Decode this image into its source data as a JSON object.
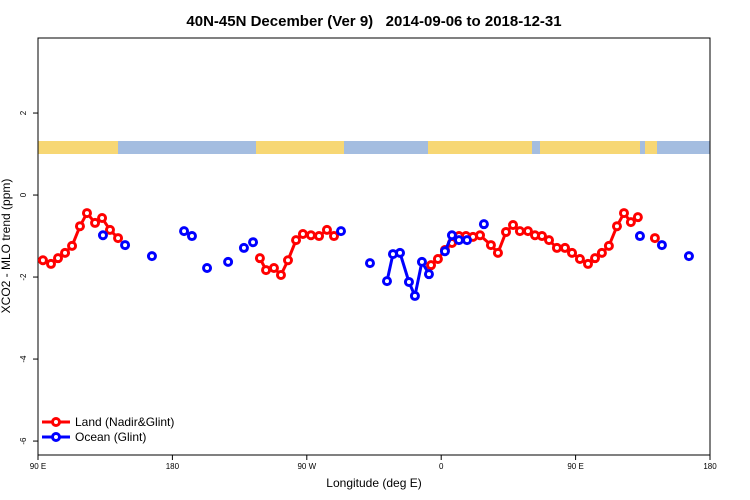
{
  "chart_data": {
    "type": "line",
    "title": "40N-45N December (Ver 9)   2014-09-06 to 2018-12-31",
    "x_label": "Longitude (deg E)",
    "y_label": "XCO2 - MLO trend (ppm)",
    "xlim": [
      90,
      540
    ],
    "xticks": [
      {
        "value": 90,
        "label": "90 E"
      },
      {
        "value": 180,
        "label": "180"
      },
      {
        "value": 270,
        "label": "90 W"
      },
      {
        "value": 360,
        "label": "0"
      },
      {
        "value": 450,
        "label": "90 E"
      },
      {
        "value": 540,
        "label": "180"
      }
    ],
    "ylim": [
      -6.34,
      3.83
    ],
    "yticks": [
      -6,
      -4,
      -2,
      0,
      2
    ],
    "legend": "bottom-left",
    "series": [
      {
        "name": "Land (Nadir&Glint)",
        "color": "#ff0000",
        "x": [
          93.3,
          98.7,
          103.4,
          108.1,
          112.8,
          118.1,
          122.8,
          128.2,
          132.9,
          138.2,
          143.6,
          null,
          238.6,
          242.7,
          248.0,
          252.7,
          257.4,
          262.8,
          267.4,
          272.8,
          278.2,
          283.5,
          288.2,
          null,
          353.2,
          357.8,
          362.5,
          367.2,
          371.9,
          376.6,
          381.3,
          386.0,
          393.3,
          398.0,
          403.4,
          408.1,
          412.7,
          418.1,
          422.8,
          427.5,
          432.2,
          437.5,
          442.9,
          447.6,
          452.9,
          458.3,
          463.0,
          467.6,
          472.3,
          477.7,
          482.4,
          487.0,
          491.7,
          null,
          503.1
        ],
        "values": [
          -1.59,
          -1.68,
          -1.54,
          -1.41,
          -1.24,
          -0.76,
          -0.44,
          -0.68,
          -0.56,
          -0.85,
          -1.05,
          null,
          -1.54,
          -1.83,
          -1.78,
          -1.95,
          -1.59,
          -1.1,
          -0.95,
          -0.98,
          -1.0,
          -0.85,
          -1.0,
          null,
          -1.71,
          -1.56,
          -1.34,
          -1.17,
          -1.0,
          -1.0,
          -1.02,
          -0.98,
          -1.22,
          -1.41,
          -0.9,
          -0.73,
          -0.88,
          -0.88,
          -0.98,
          -1.0,
          -1.1,
          -1.29,
          -1.29,
          -1.41,
          -1.56,
          -1.68,
          -1.54,
          -1.41,
          -1.24,
          -0.76,
          -0.44,
          -0.66,
          -0.54,
          null,
          -1.05
        ]
      },
      {
        "name": "Ocean (Glint)",
        "color": "#0000ff",
        "x": [
          133.5,
          null,
          148.3,
          null,
          166.3,
          null,
          187.8,
          null,
          193.1,
          null,
          203.2,
          null,
          217.3,
          null,
          227.9,
          null,
          234.0,
          null,
          292.9,
          null,
          312.3,
          null,
          323.7,
          327.7,
          332.4,
          338.4,
          342.4,
          347.1,
          351.8,
          null,
          362.5,
          367.2,
          371.9,
          377.3,
          null,
          388.6,
          null,
          493.1,
          null,
          507.8,
          null,
          525.9
        ],
        "values": [
          -0.98,
          null,
          -1.22,
          null,
          -1.49,
          null,
          -0.88,
          null,
          -1.0,
          null,
          -1.78,
          null,
          -1.63,
          null,
          -1.29,
          null,
          -1.15,
          null,
          -0.88,
          null,
          -1.66,
          null,
          -2.1,
          -1.44,
          -1.41,
          -2.12,
          -2.46,
          -1.63,
          -1.93,
          null,
          -1.37,
          -0.98,
          -1.1,
          -1.1,
          null,
          -0.71,
          null,
          -1.0,
          null,
          -1.22,
          null,
          -1.49
        ]
      }
    ]
  }
}
